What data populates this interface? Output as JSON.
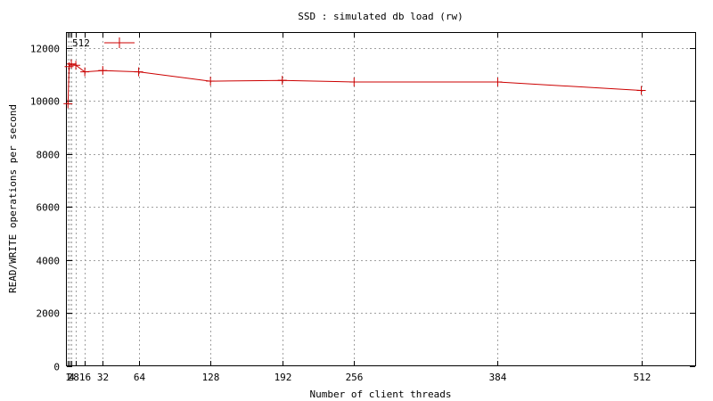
{
  "chart_data": {
    "type": "line",
    "title": "SSD : simulated db load (rw)",
    "xlabel": "Number of client threads",
    "ylabel": "READ/WRITE operations per second",
    "x_ticks": [
      1,
      2,
      4,
      8,
      16,
      32,
      64,
      128,
      192,
      256,
      384,
      512
    ],
    "x_tick_labels": [
      "1",
      "2",
      "4",
      "8",
      "16",
      "32",
      "64",
      "128",
      "192",
      "256",
      "384",
      "512"
    ],
    "y_ticks": [
      0,
      2000,
      4000,
      6000,
      8000,
      10000,
      12000
    ],
    "xlim": [
      0,
      560
    ],
    "ylim": [
      0,
      12600
    ],
    "grid": true,
    "legend_position": "top-left",
    "series": [
      {
        "name": "512",
        "color": "#cc0000",
        "marker": "plus",
        "x": [
          1,
          2,
          4,
          8,
          16,
          32,
          64,
          128,
          192,
          256,
          384,
          512
        ],
        "y": [
          9900,
          11300,
          11400,
          11350,
          11100,
          11150,
          11100,
          10750,
          10780,
          10720,
          10720,
          10400
        ]
      }
    ]
  }
}
